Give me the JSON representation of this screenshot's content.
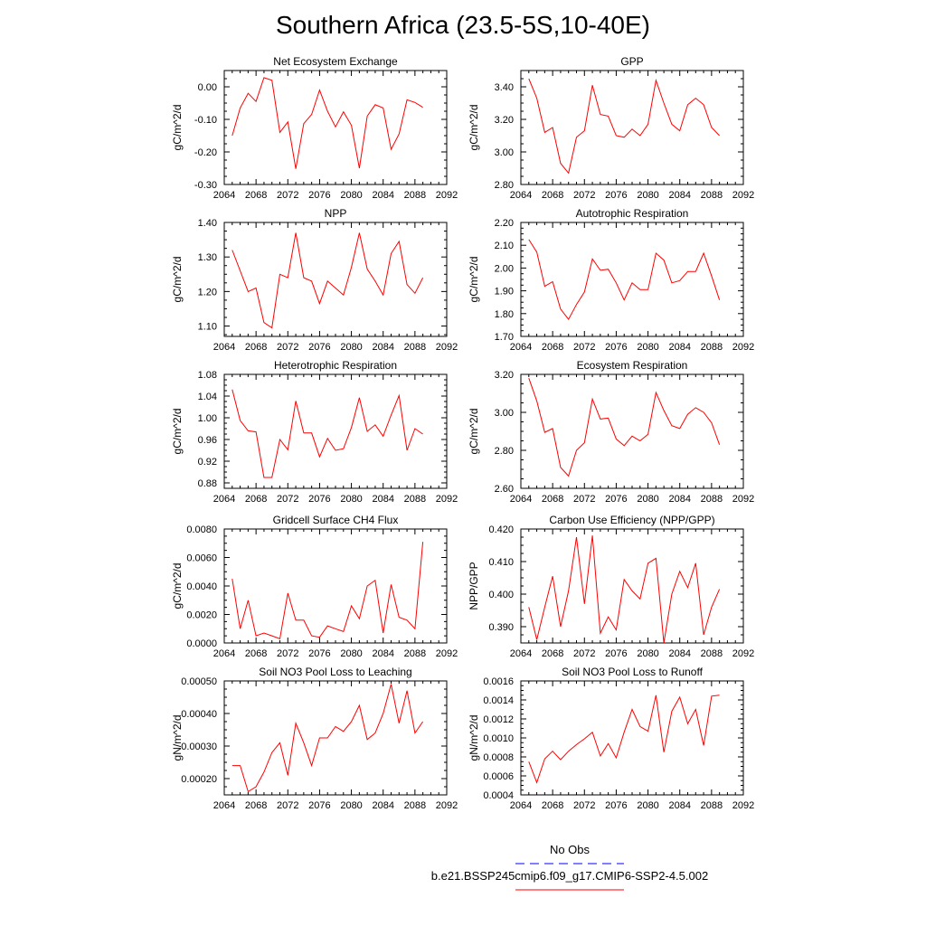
{
  "title": "Southern Africa (23.5-5S,10-40E)",
  "colors": {
    "series": "#ff0000",
    "obs": "#0000ff",
    "axis": "#000000"
  },
  "legend": {
    "obs_label": "No Obs",
    "case_label": "b.e21.BSSP245cmip6.f09_g17.CMIP6-SSP2-4.5.002"
  },
  "chart_data": [
    {
      "type": "line",
      "title": "Net Ecosystem Exchange",
      "ylabel": "gC/m^2/d",
      "xlim": [
        2064,
        2092
      ],
      "ylim": [
        -0.3,
        0.05
      ],
      "xticks": [
        "2064",
        "2068",
        "2072",
        "2076",
        "2080",
        "2084",
        "2088",
        "2092"
      ],
      "yticks": [
        {
          "v": 0.0,
          "label": "0.00"
        },
        {
          "v": -0.1,
          "label": "-0.10"
        },
        {
          "v": -0.2,
          "label": "-0.20"
        },
        {
          "v": -0.3,
          "label": "-0.30"
        }
      ],
      "x": [
        2065,
        2066,
        2067,
        2068,
        2069,
        2070,
        2071,
        2072,
        2073,
        2074,
        2075,
        2076,
        2077,
        2078,
        2079,
        2080,
        2081,
        2082,
        2083,
        2084,
        2085,
        2086,
        2087,
        2088,
        2089
      ],
      "series": [
        {
          "values": [
            -0.15,
            -0.065,
            -0.02,
            -0.045,
            0.028,
            0.02,
            -0.14,
            -0.108,
            -0.252,
            -0.113,
            -0.085,
            -0.01,
            -0.075,
            -0.123,
            -0.077,
            -0.118,
            -0.25,
            -0.09,
            -0.055,
            -0.065,
            -0.192,
            -0.145,
            -0.04,
            -0.048,
            -0.063
          ]
        }
      ]
    },
    {
      "type": "line",
      "title": "GPP",
      "ylabel": "gC/m^2/d",
      "xlim": [
        2064,
        2092
      ],
      "ylim": [
        2.8,
        3.5
      ],
      "xticks": [
        "2064",
        "2068",
        "2072",
        "2076",
        "2080",
        "2084",
        "2088",
        "2092"
      ],
      "yticks": [
        {
          "v": 3.4,
          "label": "3.40"
        },
        {
          "v": 3.2,
          "label": "3.20"
        },
        {
          "v": 3.0,
          "label": "3.00"
        },
        {
          "v": 2.8,
          "label": "2.80"
        }
      ],
      "x": [
        2065,
        2066,
        2067,
        2068,
        2069,
        2070,
        2071,
        2072,
        2073,
        2074,
        2075,
        2076,
        2077,
        2078,
        2079,
        2080,
        2081,
        2082,
        2083,
        2084,
        2085,
        2086,
        2087,
        2088,
        2089
      ],
      "series": [
        {
          "values": [
            3.45,
            3.33,
            3.12,
            3.15,
            2.93,
            2.87,
            3.09,
            3.13,
            3.41,
            3.23,
            3.22,
            3.1,
            3.09,
            3.14,
            3.1,
            3.17,
            3.44,
            3.3,
            3.17,
            3.13,
            3.29,
            3.33,
            3.29,
            3.15,
            3.1
          ]
        }
      ]
    },
    {
      "type": "line",
      "title": "NPP",
      "ylabel": "gC/m^2/d",
      "xlim": [
        2064,
        2092
      ],
      "ylim": [
        1.07,
        1.4
      ],
      "xticks": [
        "2064",
        "2068",
        "2072",
        "2076",
        "2080",
        "2084",
        "2088",
        "2092"
      ],
      "yticks": [
        {
          "v": 1.4,
          "label": "1.40"
        },
        {
          "v": 1.3,
          "label": "1.30"
        },
        {
          "v": 1.2,
          "label": "1.20"
        },
        {
          "v": 1.1,
          "label": "1.10"
        }
      ],
      "x": [
        2065,
        2066,
        2067,
        2068,
        2069,
        2070,
        2071,
        2072,
        2073,
        2074,
        2075,
        2076,
        2077,
        2078,
        2079,
        2080,
        2081,
        2082,
        2083,
        2084,
        2085,
        2086,
        2087,
        2088,
        2089
      ],
      "series": [
        {
          "values": [
            1.32,
            1.26,
            1.2,
            1.21,
            1.11,
            1.095,
            1.25,
            1.24,
            1.37,
            1.24,
            1.23,
            1.165,
            1.23,
            1.21,
            1.19,
            1.27,
            1.37,
            1.265,
            1.23,
            1.19,
            1.31,
            1.345,
            1.22,
            1.195,
            1.24
          ]
        }
      ]
    },
    {
      "type": "line",
      "title": "Autotrophic Respiration",
      "ylabel": "gC/m^2/d",
      "xlim": [
        2064,
        2092
      ],
      "ylim": [
        1.7,
        2.2
      ],
      "xticks": [
        "2064",
        "2068",
        "2072",
        "2076",
        "2080",
        "2084",
        "2088",
        "2092"
      ],
      "yticks": [
        {
          "v": 2.2,
          "label": "2.20"
        },
        {
          "v": 2.1,
          "label": "2.10"
        },
        {
          "v": 2.0,
          "label": "2.00"
        },
        {
          "v": 1.9,
          "label": "1.90"
        },
        {
          "v": 1.8,
          "label": "1.80"
        },
        {
          "v": 1.7,
          "label": "1.70"
        }
      ],
      "x": [
        2065,
        2066,
        2067,
        2068,
        2069,
        2070,
        2071,
        2072,
        2073,
        2074,
        2075,
        2076,
        2077,
        2078,
        2079,
        2080,
        2081,
        2082,
        2083,
        2084,
        2085,
        2086,
        2087,
        2088,
        2089
      ],
      "series": [
        {
          "values": [
            2.125,
            2.07,
            1.92,
            1.94,
            1.82,
            1.775,
            1.84,
            1.895,
            2.04,
            1.99,
            1.995,
            1.935,
            1.86,
            1.935,
            1.905,
            1.905,
            2.065,
            2.035,
            1.935,
            1.945,
            1.985,
            1.985,
            2.065,
            1.965,
            1.86
          ]
        }
      ]
    },
    {
      "type": "line",
      "title": "Heterotrophic Respiration",
      "ylabel": "gC/m^2/d",
      "xlim": [
        2064,
        2092
      ],
      "ylim": [
        0.87,
        1.08
      ],
      "xticks": [
        "2064",
        "2068",
        "2072",
        "2076",
        "2080",
        "2084",
        "2088",
        "2092"
      ],
      "yticks": [
        {
          "v": 1.08,
          "label": "1.08"
        },
        {
          "v": 1.04,
          "label": "1.04"
        },
        {
          "v": 1.0,
          "label": "1.00"
        },
        {
          "v": 0.96,
          "label": "0.96"
        },
        {
          "v": 0.92,
          "label": "0.92"
        },
        {
          "v": 0.88,
          "label": "0.88"
        }
      ],
      "x": [
        2065,
        2066,
        2067,
        2068,
        2069,
        2070,
        2071,
        2072,
        2073,
        2074,
        2075,
        2076,
        2077,
        2078,
        2079,
        2080,
        2081,
        2082,
        2083,
        2084,
        2085,
        2086,
        2087,
        2088,
        2089
      ],
      "series": [
        {
          "values": [
            1.052,
            0.995,
            0.976,
            0.974,
            0.89,
            0.89,
            0.96,
            0.941,
            1.031,
            0.972,
            0.972,
            0.928,
            0.962,
            0.94,
            0.943,
            0.982,
            1.037,
            0.975,
            0.987,
            0.966,
            1.005,
            1.041,
            0.94,
            0.98,
            0.97
          ]
        }
      ]
    },
    {
      "type": "line",
      "title": "Ecosystem Respiration",
      "ylabel": "gC/m^2/d",
      "xlim": [
        2064,
        2092
      ],
      "ylim": [
        2.6,
        3.2
      ],
      "xticks": [
        "2064",
        "2068",
        "2072",
        "2076",
        "2080",
        "2084",
        "2088",
        "2092"
      ],
      "yticks": [
        {
          "v": 3.2,
          "label": "3.20"
        },
        {
          "v": 3.0,
          "label": "3.00"
        },
        {
          "v": 2.8,
          "label": "2.80"
        },
        {
          "v": 2.6,
          "label": "2.60"
        }
      ],
      "x": [
        2065,
        2066,
        2067,
        2068,
        2069,
        2070,
        2071,
        2072,
        2073,
        2074,
        2075,
        2076,
        2077,
        2078,
        2079,
        2080,
        2081,
        2082,
        2083,
        2084,
        2085,
        2086,
        2087,
        2088,
        2089
      ],
      "series": [
        {
          "values": [
            3.18,
            3.06,
            2.895,
            2.915,
            2.71,
            2.665,
            2.8,
            2.84,
            3.07,
            2.965,
            2.97,
            2.86,
            2.825,
            2.875,
            2.85,
            2.885,
            3.105,
            3.01,
            2.93,
            2.915,
            2.99,
            3.025,
            3.0,
            2.945,
            2.83
          ]
        }
      ]
    },
    {
      "type": "line",
      "title": "Gridcell Surface CH4 Flux",
      "ylabel": "gC/m^2/d",
      "xlim": [
        2064,
        2092
      ],
      "ylim": [
        0.0,
        0.008
      ],
      "xticks": [
        "2064",
        "2068",
        "2072",
        "2076",
        "2080",
        "2084",
        "2088",
        "2092"
      ],
      "yticks": [
        {
          "v": 0.008,
          "label": "0.0080"
        },
        {
          "v": 0.006,
          "label": "0.0060"
        },
        {
          "v": 0.004,
          "label": "0.0040"
        },
        {
          "v": 0.002,
          "label": "0.0020"
        },
        {
          "v": 0.0,
          "label": "0.0000"
        }
      ],
      "x": [
        2065,
        2066,
        2067,
        2068,
        2069,
        2070,
        2071,
        2072,
        2073,
        2074,
        2075,
        2076,
        2077,
        2078,
        2079,
        2080,
        2081,
        2082,
        2083,
        2084,
        2085,
        2086,
        2087,
        2088,
        2089
      ],
      "series": [
        {
          "values": [
            0.0045,
            0.001,
            0.003,
            0.0005,
            0.0007,
            0.0005,
            0.0003,
            0.0035,
            0.0016,
            0.0016,
            0.0005,
            0.0004,
            0.0012,
            0.001,
            0.0008,
            0.0026,
            0.0017,
            0.004,
            0.0044,
            0.0007,
            0.0041,
            0.0018,
            0.0016,
            0.001,
            0.0071
          ]
        }
      ]
    },
    {
      "type": "line",
      "title": "Carbon Use Efficiency (NPP/GPP)",
      "ylabel": "NPP/GPP",
      "xlim": [
        2064,
        2092
      ],
      "ylim": [
        0.385,
        0.42
      ],
      "xticks": [
        "2064",
        "2068",
        "2072",
        "2076",
        "2080",
        "2084",
        "2088",
        "2092"
      ],
      "yticks": [
        {
          "v": 0.42,
          "label": "0.420"
        },
        {
          "v": 0.41,
          "label": "0.410"
        },
        {
          "v": 0.4,
          "label": "0.400"
        },
        {
          "v": 0.39,
          "label": "0.390"
        }
      ],
      "x": [
        2065,
        2066,
        2067,
        2068,
        2069,
        2070,
        2071,
        2072,
        2073,
        2074,
        2075,
        2076,
        2077,
        2078,
        2079,
        2080,
        2081,
        2082,
        2083,
        2084,
        2085,
        2086,
        2087,
        2088,
        2089
      ],
      "series": [
        {
          "values": [
            0.396,
            0.386,
            0.396,
            0.4055,
            0.39,
            0.401,
            0.4175,
            0.397,
            0.418,
            0.388,
            0.393,
            0.389,
            0.4045,
            0.401,
            0.3985,
            0.4095,
            0.411,
            0.385,
            0.4,
            0.407,
            0.402,
            0.4095,
            0.3875,
            0.396,
            0.4015
          ]
        }
      ]
    },
    {
      "type": "line",
      "title": "Soil NO3 Pool Loss to Leaching",
      "ylabel": "gN/m^2/d",
      "xlim": [
        2064,
        2092
      ],
      "ylim": [
        0.00015,
        0.0005
      ],
      "xticks": [
        "2064",
        "2068",
        "2072",
        "2076",
        "2080",
        "2084",
        "2088",
        "2092"
      ],
      "yticks": [
        {
          "v": 0.0005,
          "label": "0.00050"
        },
        {
          "v": 0.0004,
          "label": "0.00040"
        },
        {
          "v": 0.0003,
          "label": "0.00030"
        },
        {
          "v": 0.0002,
          "label": "0.00020"
        }
      ],
      "x": [
        2065,
        2066,
        2067,
        2068,
        2069,
        2070,
        2071,
        2072,
        2073,
        2074,
        2075,
        2076,
        2077,
        2078,
        2079,
        2080,
        2081,
        2082,
        2083,
        2084,
        2085,
        2086,
        2087,
        2088,
        2089
      ],
      "series": [
        {
          "values": [
            0.00024,
            0.00024,
            0.00016,
            0.000175,
            0.00022,
            0.00028,
            0.00031,
            0.00021,
            0.00037,
            0.00031,
            0.00024,
            0.000325,
            0.000325,
            0.00036,
            0.000345,
            0.000375,
            0.000425,
            0.00032,
            0.00034,
            0.0004,
            0.00049,
            0.00037,
            0.00047,
            0.00034,
            0.000375
          ]
        }
      ]
    },
    {
      "type": "line",
      "title": "Soil NO3 Pool Loss to Runoff",
      "ylabel": "gN/m^2/d",
      "xlim": [
        2064,
        2092
      ],
      "ylim": [
        0.0004,
        0.0016
      ],
      "xticks": [
        "2064",
        "2068",
        "2072",
        "2076",
        "2080",
        "2084",
        "2088",
        "2092"
      ],
      "yticks": [
        {
          "v": 0.0016,
          "label": "0.0016"
        },
        {
          "v": 0.0014,
          "label": "0.0014"
        },
        {
          "v": 0.0012,
          "label": "0.0012"
        },
        {
          "v": 0.001,
          "label": "0.0010"
        },
        {
          "v": 0.0008,
          "label": "0.0008"
        },
        {
          "v": 0.0006,
          "label": "0.0006"
        },
        {
          "v": 0.0004,
          "label": "0.0004"
        }
      ],
      "x": [
        2065,
        2066,
        2067,
        2068,
        2069,
        2070,
        2071,
        2072,
        2073,
        2074,
        2075,
        2076,
        2077,
        2078,
        2079,
        2080,
        2081,
        2082,
        2083,
        2084,
        2085,
        2086,
        2087,
        2088,
        2089
      ],
      "series": [
        {
          "values": [
            0.00075,
            0.00053,
            0.00078,
            0.00086,
            0.00077,
            0.00086,
            0.00093,
            0.00099,
            0.00106,
            0.00081,
            0.00094,
            0.00079,
            0.00106,
            0.0013,
            0.00112,
            0.00107,
            0.00145,
            0.00085,
            0.00128,
            0.00143,
            0.00115,
            0.0013,
            0.00092,
            0.00144,
            0.00145
          ]
        }
      ]
    }
  ]
}
